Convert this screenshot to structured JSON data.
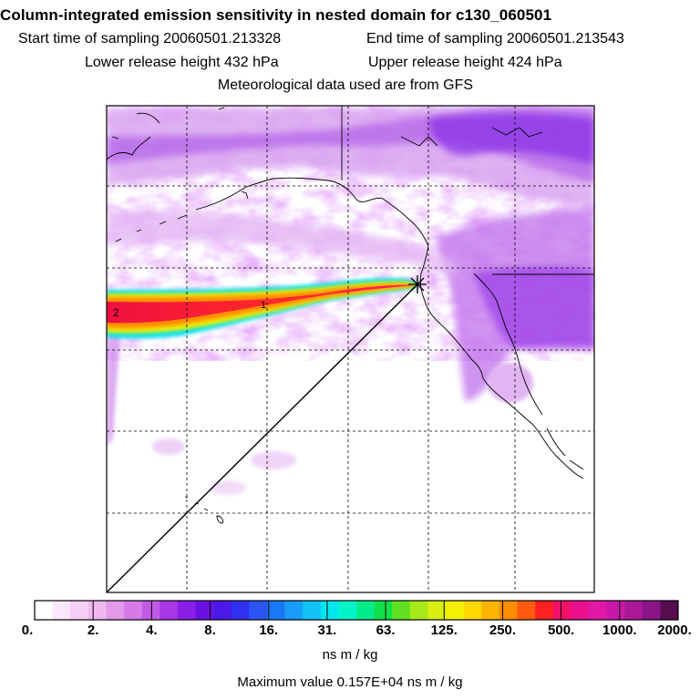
{
  "header": {
    "title": "Column-integrated emission sensitivity in nested domain for c130_060501",
    "start_time": "Start time of sampling 20060501.213328",
    "end_time": "End time of sampling 20060501.213543",
    "lower_release": "Lower release height  432 hPa",
    "upper_release": "Upper release height  424 hPa",
    "met_data": "Meteorological data used are from GFS"
  },
  "map": {
    "plume_labels": [
      "2",
      "1"
    ],
    "release_marker": "star-cross-icon"
  },
  "colorbar": {
    "tick_labels": [
      "0.",
      "2.",
      "4.",
      "8.",
      "16.",
      "31.",
      "63.",
      "125.",
      "250.",
      "500.",
      "1000.",
      "2000."
    ],
    "colors": [
      "#ffffff",
      "#fbe6fb",
      "#f6cff6",
      "#f0b8f0",
      "#e39ae9",
      "#d67ae8",
      "#c25ae6",
      "#a836e6",
      "#8a1ee6",
      "#6a10e2",
      "#4c18e6",
      "#3030f0",
      "#2a55f4",
      "#1a78f6",
      "#189cf8",
      "#10c2f6",
      "#00e6ee",
      "#00f4c8",
      "#00ec8a",
      "#10e04a",
      "#60e020",
      "#a8e818",
      "#d8ef10",
      "#f2f000",
      "#ffd800",
      "#ffb400",
      "#ff8c00",
      "#ff5a10",
      "#ff2020",
      "#f4106a",
      "#ec1090",
      "#e018a8",
      "#c818a8",
      "#a81898",
      "#8a1488",
      "#580c50"
    ],
    "units": "ns m / kg",
    "max_value": "Maximum value  0.157E+04 ns m / kg"
  }
}
